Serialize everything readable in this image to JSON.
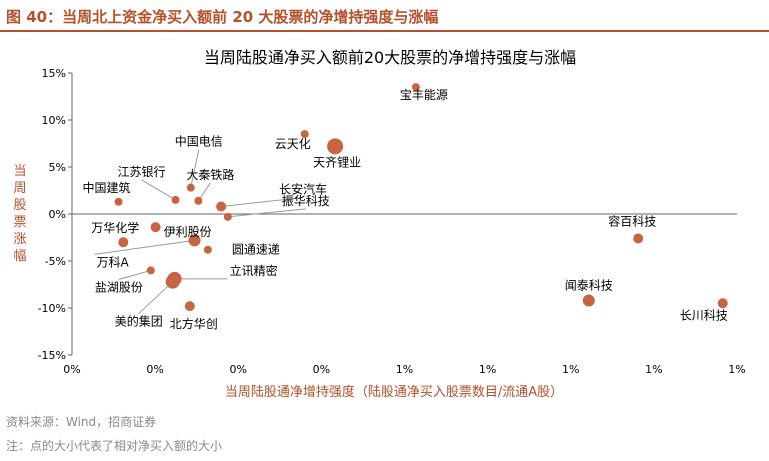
{
  "header": {
    "figure_title": "图 40：当周北上资金净买入额前 20 大股票的净增持强度与涨幅"
  },
  "footer": {
    "source": "资料来源：Wind，招商证券",
    "note": "注：点的大小代表了相对净买入额的大小"
  },
  "colors": {
    "accent": "#b5502a",
    "point": "#c86441",
    "leader": "#9a9a9a"
  },
  "chart_data": {
    "type": "scatter",
    "title": "当周陆股通净买入额前20大股票的净增持强度与涨幅",
    "xlabel": "当周陆股通净增持强度（陆股通净买入股票数目/流通A股）",
    "ylabel": "当周股票涨幅",
    "xlim": [
      0,
      0.7
    ],
    "ylim": [
      -15,
      15
    ],
    "x_tick_labels": [
      "0%",
      "0%",
      "0%",
      "0%",
      "1%",
      "1%",
      "1%",
      "1%",
      "1%"
    ],
    "y_tick_labels": [
      "15%",
      "10%",
      "5%",
      "0%",
      "-5%",
      "-10%",
      "-15%"
    ],
    "y_ticks": [
      15,
      10,
      5,
      0,
      -5,
      -10,
      -15
    ],
    "grid": false,
    "points": [
      {
        "name": "宝丰能源",
        "x": 0.362,
        "y": 13.5,
        "size": 4
      },
      {
        "name": "云天化",
        "x": 0.245,
        "y": 8.5,
        "size": 4
      },
      {
        "name": "天齐锂业",
        "x": 0.277,
        "y": 7.2,
        "size": 8
      },
      {
        "name": "中国电信",
        "x": 0.125,
        "y": 2.8,
        "size": 4
      },
      {
        "name": "江苏银行",
        "x": 0.109,
        "y": 1.5,
        "size": 4
      },
      {
        "name": "大秦铁路",
        "x": 0.133,
        "y": 1.4,
        "size": 4
      },
      {
        "name": "中国建筑",
        "x": 0.049,
        "y": 1.3,
        "size": 4
      },
      {
        "name": "长安汽车",
        "x": 0.157,
        "y": 0.8,
        "size": 5
      },
      {
        "name": "振华科技",
        "x": 0.164,
        "y": -0.3,
        "size": 4
      },
      {
        "name": "伊利股份",
        "x": 0.088,
        "y": -1.4,
        "size": 5
      },
      {
        "name": "万华化学",
        "x": 0.054,
        "y": -3.0,
        "size": 5
      },
      {
        "name": "圆通速递",
        "x": 0.143,
        "y": -3.8,
        "size": 4
      },
      {
        "name": "万科A",
        "x": 0.129,
        "y": -2.8,
        "size": 6
      },
      {
        "name": "容百科技",
        "x": 0.596,
        "y": -2.6,
        "size": 5
      },
      {
        "name": "盐湖股份",
        "x": 0.083,
        "y": -6.0,
        "size": 4
      },
      {
        "name": "立讯精密",
        "x": 0.108,
        "y": -6.9,
        "size": 7
      },
      {
        "name": "美的集团",
        "x": 0.106,
        "y": -7.2,
        "size": 7
      },
      {
        "name": "闻泰科技",
        "x": 0.544,
        "y": -9.2,
        "size": 6
      },
      {
        "name": "北方华创",
        "x": 0.124,
        "y": -9.8,
        "size": 5
      },
      {
        "name": "长川科技",
        "x": 0.685,
        "y": -9.5,
        "size": 5
      }
    ]
  }
}
